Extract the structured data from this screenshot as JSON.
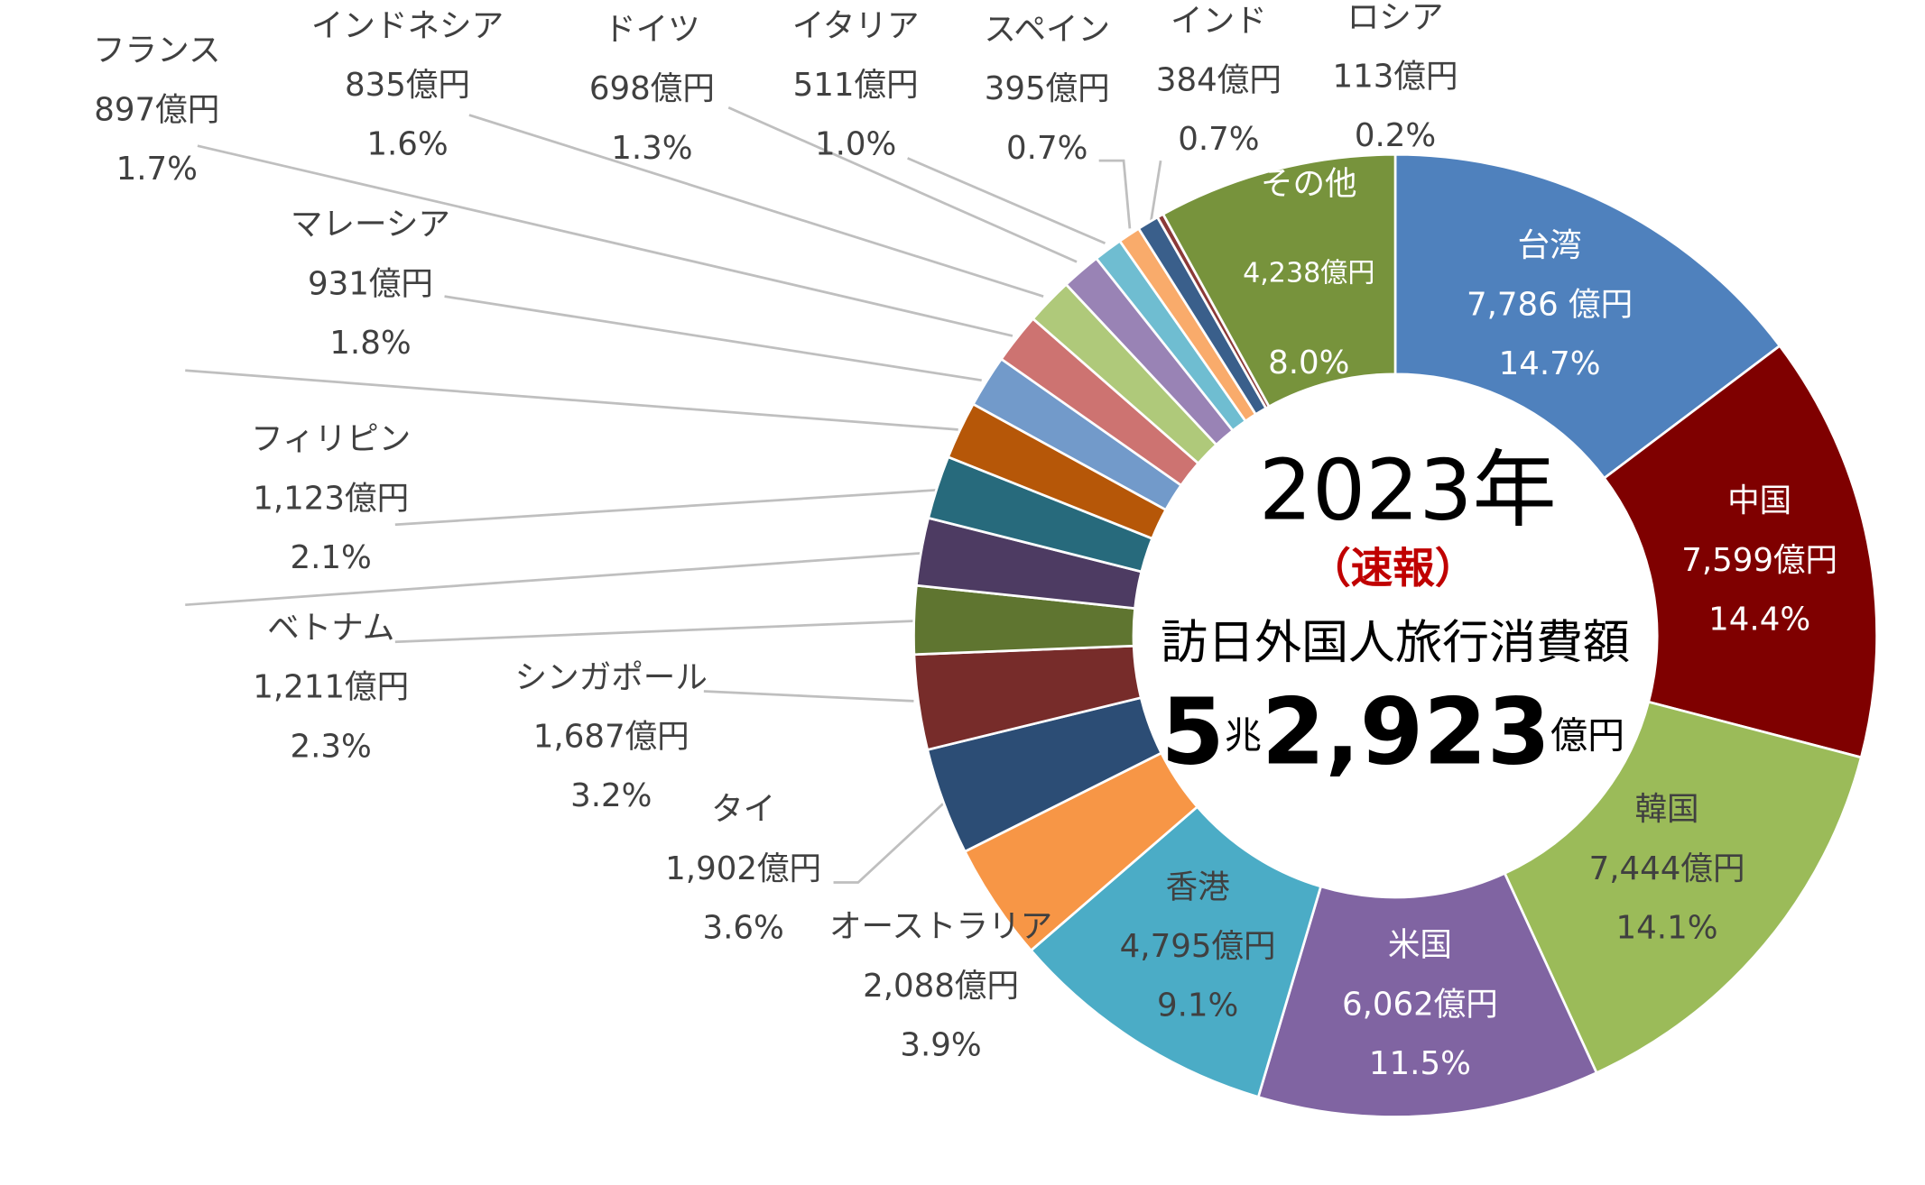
{
  "chart_data": {
    "type": "donut",
    "categories": [
      "台湾",
      "中国",
      "韓国",
      "米国",
      "香港",
      "オーストラリア",
      "タイ",
      "シンガポール",
      "ベトナム",
      null,
      "フィリピン",
      null,
      "マレーシア",
      "フランス",
      "インドネシア",
      "ドイツ",
      "イタリア",
      "スペイン",
      "インド",
      "ロシア",
      "その他"
    ],
    "values": [
      7786,
      7599,
      7444,
      6062,
      4795,
      2088,
      1902,
      1687,
      1211,
      1200,
      1123,
      1024,
      931,
      897,
      835,
      698,
      511,
      395,
      384,
      113,
      4238
    ],
    "value_labels": [
      "7,786 億円",
      "7,599億円",
      "7,444億円",
      "6,062億円",
      "4,795億円",
      "2,088億円",
      "1,902億円",
      "1,687億円",
      "1,211億円",
      null,
      "1,123億円",
      null,
      "931億円",
      "897億円",
      "835億円",
      "698億円",
      "511億円",
      "395億円",
      "384億円",
      "113億円",
      "4,238億円"
    ],
    "share_labels": [
      "14.7%",
      "14.4%",
      "14.1%",
      "11.5%",
      "9.1%",
      "3.9%",
      "3.6%",
      "3.2%",
      "2.3%",
      null,
      "2.1%",
      null,
      "1.8%",
      "1.7%",
      "1.6%",
      "1.3%",
      "1.0%",
      "0.7%",
      "0.7%",
      "0.2%",
      "8.0%"
    ],
    "colors": [
      "#4f81bd",
      "#7f0000",
      "#9bbb59",
      "#8064a2",
      "#4bacc6",
      "#f79646",
      "#2c4d75",
      "#772c2a",
      "#5f7530",
      "#4d3b62",
      "#276a7c",
      "#b65708",
      "#729aca",
      "#cd7371",
      "#afc97a",
      "#9983b5",
      "#6fbdd1",
      "#f9ab6b",
      "#3a5f8b",
      "#8b3a38",
      "#77933c"
    ],
    "center_title": "2023年",
    "center_note": "（速報）",
    "center_subtitle": "訪日外国人旅行消費額",
    "center_total": "5兆2,923億円"
  }
}
